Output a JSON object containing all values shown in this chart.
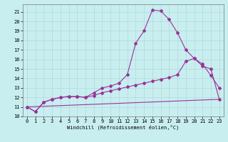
{
  "title": "",
  "xlabel": "Windchill (Refroidissement éolien,°C)",
  "xlim": [
    -0.5,
    23.5
  ],
  "ylim": [
    10.0,
    21.8
  ],
  "yticks": [
    10,
    11,
    12,
    13,
    14,
    15,
    16,
    17,
    18,
    19,
    20,
    21
  ],
  "xticks": [
    0,
    1,
    2,
    3,
    4,
    5,
    6,
    7,
    8,
    9,
    10,
    11,
    12,
    13,
    14,
    15,
    16,
    17,
    18,
    19,
    20,
    21,
    22,
    23
  ],
  "background_color": "#c8eef0",
  "grid_color": "#b0d8da",
  "line_color": "#993399",
  "line1_x": [
    0,
    1,
    2,
    3,
    4,
    5,
    6,
    7,
    8,
    9,
    10,
    11,
    12,
    13,
    14,
    15,
    16,
    17,
    18,
    19,
    20,
    21,
    22,
    23
  ],
  "line1_y": [
    11.0,
    10.5,
    11.5,
    11.8,
    12.0,
    12.1,
    12.1,
    12.0,
    12.5,
    13.0,
    13.2,
    13.5,
    14.4,
    17.7,
    19.0,
    21.2,
    21.1,
    20.2,
    18.8,
    17.0,
    16.1,
    15.5,
    14.3,
    13.0
  ],
  "line2_x": [
    0,
    1,
    2,
    3,
    4,
    5,
    6,
    7,
    8,
    9,
    10,
    11,
    12,
    13,
    14,
    15,
    16,
    17,
    18,
    19,
    20,
    21,
    22,
    23
  ],
  "line2_y": [
    11.0,
    10.5,
    11.5,
    11.8,
    12.0,
    12.1,
    12.1,
    12.0,
    12.2,
    12.5,
    12.7,
    12.9,
    13.1,
    13.3,
    13.5,
    13.7,
    13.9,
    14.1,
    14.4,
    15.8,
    16.1,
    15.3,
    15.0,
    11.8
  ],
  "line3_x": [
    0,
    23
  ],
  "line3_y": [
    11.0,
    11.8
  ],
  "marker": "D",
  "markersize": 2,
  "linewidth": 0.8,
  "tick_fontsize": 5,
  "xlabel_fontsize": 5
}
